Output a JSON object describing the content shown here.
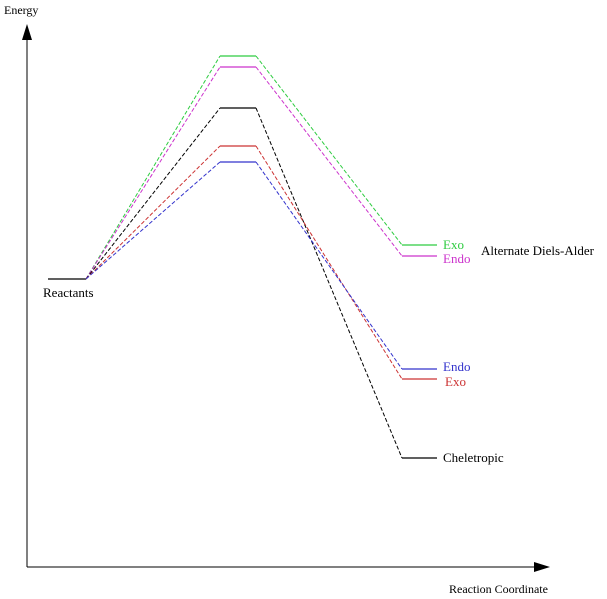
{
  "axes": {
    "y_label": "Energy",
    "x_label": "Reaction Coordinate"
  },
  "start_label": "Reactants",
  "group_label": "Alternate Diels-Alder",
  "colors": {
    "axis": "#000000",
    "reactants": "#000000"
  },
  "pathways": [
    {
      "name": "alt-exo",
      "label": "Exo",
      "color": "#2ecc40"
    },
    {
      "name": "alt-endo",
      "label": "Endo",
      "color": "#cc33cc"
    },
    {
      "name": "cheletropic",
      "label": "Cheletropic",
      "color": "#000000"
    },
    {
      "name": "exo",
      "label": "Exo",
      "color": "#cc3333"
    },
    {
      "name": "endo",
      "label": "Endo",
      "color": "#3333cc"
    }
  ]
}
